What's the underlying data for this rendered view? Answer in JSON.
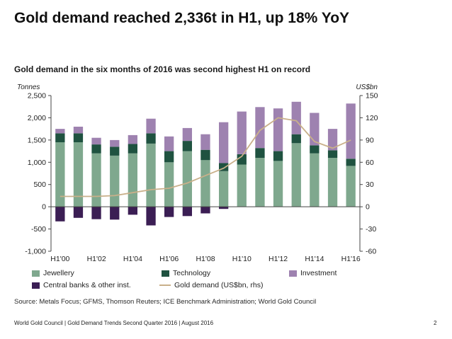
{
  "slide": {
    "title": "Gold demand reached 2,336t in H1, up 18% YoY",
    "source": "Source: Metals Focus; GFMS, Thomson Reuters; ICE Benchmark Administration; World Gold Council",
    "footer": "World Gold Council  |  Gold Demand Trends Second Quarter 2016  |  August 2016",
    "page_number": "2"
  },
  "chart_data": {
    "type": "bar",
    "title": "Gold demand in the six months of 2016 was second highest H1 on record",
    "ylabel": "Tonnes",
    "y2label": "US$bn",
    "ylim": [
      -1000,
      2500
    ],
    "y2lim": [
      -60,
      150
    ],
    "yticks": [
      "2,500",
      "2,000",
      "1,500",
      "1,000",
      "500",
      "0",
      "-500",
      "-1,000"
    ],
    "y2ticks": [
      "150",
      "120",
      "90",
      "60",
      "30",
      "0",
      "-30",
      "-60"
    ],
    "grid": false,
    "legend_position": "bottom",
    "categories": [
      "H1'00",
      "H1'01",
      "H1'02",
      "H1'03",
      "H1'04",
      "H1'05",
      "H1'06",
      "H1'07",
      "H1'08",
      "H1'09",
      "H1'10",
      "H1'11",
      "H1'12",
      "H1'13",
      "H1'14",
      "H1'15",
      "H1'16"
    ],
    "x_tick_labels": [
      "H1'00",
      "H1'02",
      "H1'04",
      "H1'06",
      "H1'08",
      "H1'10",
      "H1'12",
      "H1'14",
      "H1'16"
    ],
    "series": [
      {
        "name": "Jewellery",
        "color": "#7fa88e",
        "values": [
          1450,
          1450,
          1200,
          1150,
          1200,
          1420,
          1000,
          1250,
          1050,
          800,
          950,
          1100,
          1030,
          1430,
          1200,
          1100,
          920
        ]
      },
      {
        "name": "Technology",
        "color": "#1f5240",
        "values": [
          200,
          200,
          200,
          200,
          210,
          230,
          250,
          230,
          230,
          180,
          230,
          220,
          220,
          200,
          180,
          170,
          160
        ]
      },
      {
        "name": "Investment",
        "color": "#9e82b0",
        "values": [
          100,
          150,
          150,
          150,
          200,
          330,
          330,
          290,
          350,
          920,
          960,
          920,
          960,
          730,
          730,
          480,
          1240
        ]
      },
      {
        "name": "Central banks & other inst.",
        "color": "#3b1e54",
        "values": [
          -330,
          -250,
          -280,
          -290,
          -180,
          -420,
          -230,
          -210,
          -150,
          -50,
          0,
          0,
          0,
          0,
          0,
          0,
          0
        ]
      },
      {
        "name": "Gold demand (US$bn, rhs)",
        "color": "#c9b08a",
        "type": "line",
        "values": [
          14,
          14,
          14,
          15,
          19,
          23,
          25,
          32,
          42,
          52,
          68,
          103,
          120,
          116,
          88,
          79,
          90
        ]
      }
    ]
  }
}
